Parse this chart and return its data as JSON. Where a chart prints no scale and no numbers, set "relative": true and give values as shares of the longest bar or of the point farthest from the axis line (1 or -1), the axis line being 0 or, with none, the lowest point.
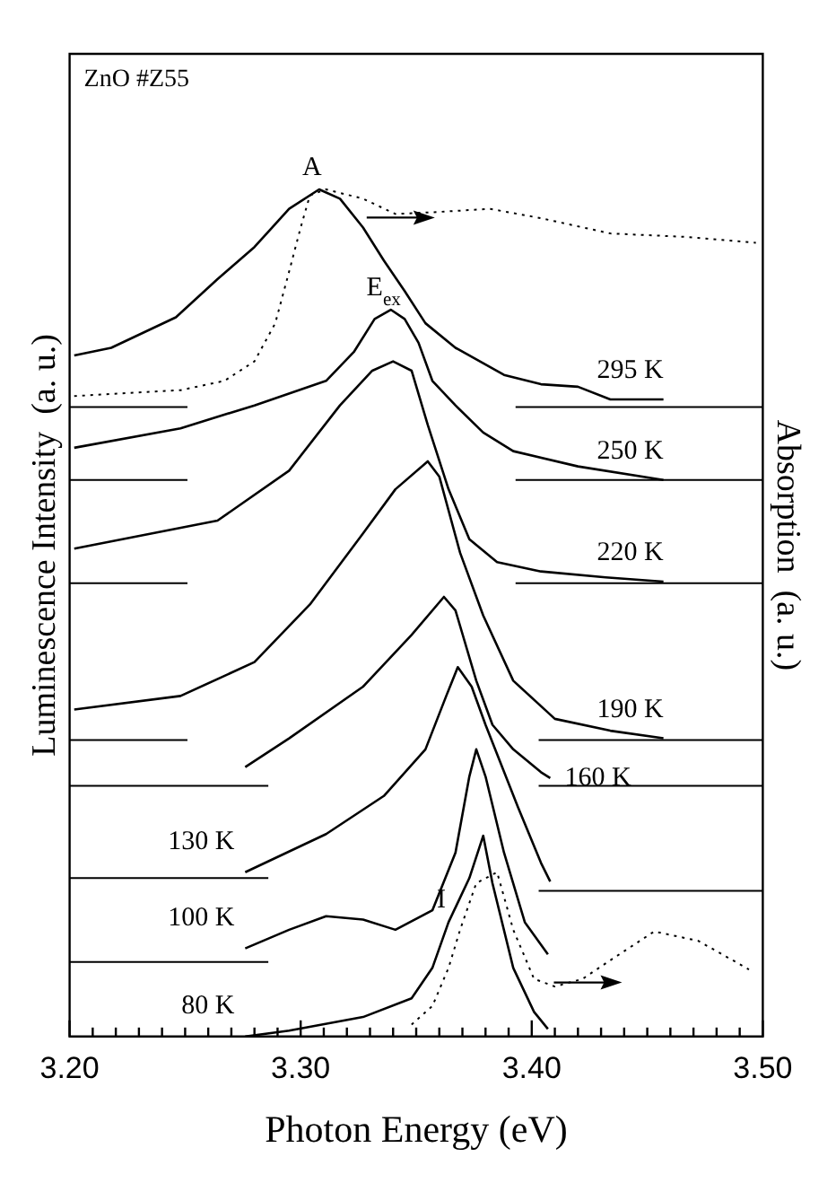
{
  "chart_data": {
    "type": "line",
    "relative": true,
    "xlabel": "Photon Energy (eV)",
    "ylabel": "Luminescence Intensity  (a. u.)",
    "y2label": "Absorption  (a. u.)",
    "xlim": [
      3.2,
      3.5
    ],
    "xticks": [
      {
        "value": 3.2,
        "label": "3.20"
      },
      {
        "value": 3.21,
        "label": null
      },
      {
        "value": 3.22,
        "label": null
      },
      {
        "value": 3.23,
        "label": null
      },
      {
        "value": 3.24,
        "label": null
      },
      {
        "value": 3.25,
        "label": null
      },
      {
        "value": 3.26,
        "label": null
      },
      {
        "value": 3.27,
        "label": null
      },
      {
        "value": 3.28,
        "label": null
      },
      {
        "value": 3.29,
        "label": null
      },
      {
        "value": 3.3,
        "label": "3.30"
      },
      {
        "value": 3.31,
        "label": null
      },
      {
        "value": 3.32,
        "label": null
      },
      {
        "value": 3.33,
        "label": null
      },
      {
        "value": 3.34,
        "label": null
      },
      {
        "value": 3.35,
        "label": null
      },
      {
        "value": 3.36,
        "label": null
      },
      {
        "value": 3.37,
        "label": null
      },
      {
        "value": 3.38,
        "label": null
      },
      {
        "value": 3.39,
        "label": null
      },
      {
        "value": 3.4,
        "label": "3.40"
      },
      {
        "value": 3.41,
        "label": null
      },
      {
        "value": 3.42,
        "label": null
      },
      {
        "value": 3.43,
        "label": null
      },
      {
        "value": 3.44,
        "label": null
      },
      {
        "value": 3.45,
        "label": null
      },
      {
        "value": 3.46,
        "label": null
      },
      {
        "value": 3.47,
        "label": null
      },
      {
        "value": 3.48,
        "label": null
      },
      {
        "value": 3.49,
        "label": null
      },
      {
        "value": 3.5,
        "label": "3.50"
      }
    ],
    "grid": false,
    "legend": false,
    "marker": "none",
    "annotations": [
      "ZnO #Z55",
      {
        "text": "A",
        "x": 3.308,
        "y": 1.0
      },
      {
        "text": "E$_{ex}$",
        "x": 3.339,
        "y": 0.858
      },
      {
        "text": "I",
        "x": 3.364,
        "y": 0.135
      }
    ],
    "series": [
      {
        "name": "295 K",
        "color": "#000000",
        "x": [
          3.202,
          3.218,
          3.246,
          3.264,
          3.28,
          3.295,
          3.308,
          3.317,
          3.327,
          3.336,
          3.345,
          3.354,
          3.367,
          3.388,
          3.404,
          3.42,
          3.434,
          3.457
        ],
        "values": [
          0.804,
          0.813,
          0.849,
          0.894,
          0.932,
          0.977,
          1.0,
          0.989,
          0.955,
          0.916,
          0.88,
          0.842,
          0.813,
          0.781,
          0.77,
          0.767,
          0.752,
          0.752
        ]
      },
      {
        "name": "250 K",
        "color": "#000000",
        "x": [
          3.202,
          3.248,
          3.28,
          3.311,
          3.323,
          3.332,
          3.339,
          3.345,
          3.351,
          3.357,
          3.367,
          3.379,
          3.392,
          3.42,
          3.457
        ],
        "values": [
          0.695,
          0.718,
          0.745,
          0.774,
          0.808,
          0.847,
          0.858,
          0.847,
          0.819,
          0.774,
          0.745,
          0.713,
          0.691,
          0.673,
          0.657
        ]
      },
      {
        "name": "220 K",
        "color": "#000000",
        "x": [
          3.202,
          3.264,
          3.295,
          3.317,
          3.331,
          3.34,
          3.348,
          3.355,
          3.364,
          3.373,
          3.385,
          3.404,
          3.432,
          3.457
        ],
        "values": [
          0.576,
          0.609,
          0.668,
          0.745,
          0.786,
          0.797,
          0.786,
          0.722,
          0.646,
          0.587,
          0.56,
          0.549,
          0.542,
          0.537
        ]
      },
      {
        "name": "190 K",
        "color": "#000000",
        "x": [
          3.202,
          3.248,
          3.28,
          3.304,
          3.327,
          3.341,
          3.355,
          3.36,
          3.369,
          3.379,
          3.392,
          3.41,
          3.434,
          3.457
        ],
        "values": [
          0.386,
          0.402,
          0.442,
          0.51,
          0.594,
          0.646,
          0.679,
          0.661,
          0.571,
          0.497,
          0.42,
          0.375,
          0.361,
          0.352
        ]
      },
      {
        "name": "160 K",
        "color": "#000000",
        "x": [
          3.276,
          3.295,
          3.327,
          3.348,
          3.362,
          3.367,
          3.376,
          3.383,
          3.392,
          3.404,
          3.408
        ],
        "values": [
          0.318,
          0.352,
          0.413,
          0.474,
          0.519,
          0.503,
          0.42,
          0.368,
          0.339,
          0.312,
          0.305
        ]
      },
      {
        "name": "130 K",
        "color": "#000000",
        "x": [
          3.276,
          3.311,
          3.336,
          3.354,
          3.363,
          3.368,
          3.374,
          3.38,
          3.394,
          3.404,
          3.408
        ],
        "values": [
          0.194,
          0.239,
          0.284,
          0.339,
          0.402,
          0.436,
          0.413,
          0.368,
          0.271,
          0.205,
          0.183
        ]
      },
      {
        "name": "100 K",
        "color": "#000000",
        "x": [
          3.276,
          3.295,
          3.311,
          3.327,
          3.341,
          3.357,
          3.367,
          3.373,
          3.376,
          3.38,
          3.388,
          3.397,
          3.407
        ],
        "values": [
          0.104,
          0.126,
          0.142,
          0.138,
          0.126,
          0.149,
          0.217,
          0.307,
          0.339,
          0.307,
          0.217,
          0.135,
          0.097
        ]
      },
      {
        "name": "80 K",
        "color": "#000000",
        "x": [
          3.276,
          3.295,
          3.327,
          3.348,
          3.357,
          3.364,
          3.373,
          3.379,
          3.383,
          3.392,
          3.401,
          3.407
        ],
        "values": [
          0.0,
          0.007,
          0.023,
          0.045,
          0.081,
          0.135,
          0.187,
          0.237,
          0.181,
          0.081,
          0.029,
          0.009
        ]
      },
      {
        "color": "#000000",
        "axis": "y2",
        "line_style": "dotted",
        "x": [
          3.202,
          3.248,
          3.267,
          3.28,
          3.289,
          3.295,
          3.3,
          3.304,
          3.311,
          3.327,
          3.341,
          3.357,
          3.382,
          3.404,
          3.434,
          3.466,
          3.497
        ],
        "values": [
          0.756,
          0.763,
          0.774,
          0.797,
          0.842,
          0.903,
          0.955,
          0.993,
          1.0,
          0.989,
          0.971,
          0.973,
          0.977,
          0.966,
          0.948,
          0.944,
          0.937
        ]
      },
      {
        "color": "#000000",
        "axis": "y2",
        "line_style": "dotted",
        "x": [
          3.348,
          3.357,
          3.364,
          3.369,
          3.376,
          3.385,
          3.392,
          3.401,
          3.41,
          3.422,
          3.434,
          3.453,
          3.472,
          3.487,
          3.494
        ],
        "values": [
          0.014,
          0.036,
          0.081,
          0.126,
          0.181,
          0.194,
          0.126,
          0.068,
          0.059,
          0.068,
          0.09,
          0.124,
          0.113,
          0.09,
          0.079
        ]
      },
      {
        "color": "#000000",
        "x": [
          3.2,
          3.251
        ],
        "values": [
          0.743,
          0.743
        ]
      },
      {
        "color": "#000000",
        "x": [
          3.393,
          3.5
        ],
        "values": [
          0.743,
          0.743
        ]
      },
      {
        "color": "#000000",
        "x": [
          3.2,
          3.251
        ],
        "values": [
          0.657,
          0.657
        ]
      },
      {
        "color": "#000000",
        "x": [
          3.393,
          3.5
        ],
        "values": [
          0.657,
          0.657
        ]
      },
      {
        "color": "#000000",
        "x": [
          3.2,
          3.251
        ],
        "values": [
          0.535,
          0.535
        ]
      },
      {
        "color": "#000000",
        "x": [
          3.393,
          3.5
        ],
        "values": [
          0.535,
          0.535
        ]
      },
      {
        "color": "#000000",
        "x": [
          3.2,
          3.251
        ],
        "values": [
          0.35,
          0.35
        ]
      },
      {
        "color": "#000000",
        "x": [
          3.403,
          3.5
        ],
        "values": [
          0.35,
          0.35
        ]
      },
      {
        "color": "#000000",
        "x": [
          3.2,
          3.286
        ],
        "values": [
          0.296,
          0.296
        ]
      },
      {
        "color": "#000000",
        "x": [
          3.403,
          3.5
        ],
        "values": [
          0.296,
          0.296
        ]
      },
      {
        "color": "#000000",
        "x": [
          3.2,
          3.286
        ],
        "values": [
          0.187,
          0.187
        ]
      },
      {
        "color": "#000000",
        "x": [
          3.403,
          3.5
        ],
        "values": [
          0.172,
          0.172
        ]
      },
      {
        "color": "#000000",
        "x": [
          3.2,
          3.286
        ],
        "values": [
          0.088,
          0.088
        ]
      }
    ]
  }
}
